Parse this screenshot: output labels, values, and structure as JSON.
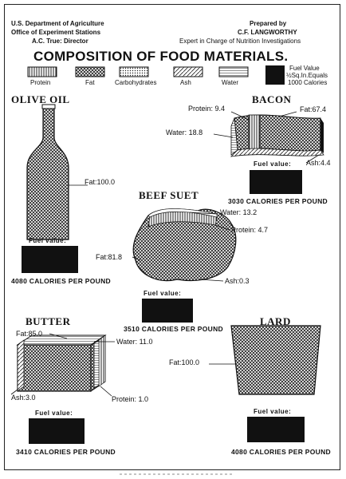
{
  "header": {
    "left_line1": "U.S. Department of Agriculture",
    "left_line2": "Office of Experiment Stations",
    "left_line3": "A.C. True: Director",
    "right_line1": "Prepared by",
    "right_line2": "C.F. LANGWORTHY",
    "right_line3": "Expert in Charge of Nutrition Investigations",
    "title": "COMPOSITION OF FOOD MATERIALS."
  },
  "legend": {
    "protein": "Protein",
    "fat": "Fat",
    "carbohydrates": "Carbohydrates",
    "ash": "Ash",
    "water": "Water",
    "fuel_line1": "Fuel Value",
    "fuel_line2": "½Sq.In.Equals",
    "fuel_line3": "1000 Calories"
  },
  "foods": {
    "olive_oil": {
      "name": "OLIVE OIL",
      "fat": "Fat:100.0",
      "fuel_label": "Fuel value:",
      "calories": "4080 CALORIES PER POUND"
    },
    "bacon": {
      "name": "BACON",
      "protein": "Protein: 9.4",
      "fat": "Fat:67.4",
      "water": "Water: 18.8",
      "ash": "Ash:4.4",
      "fuel_label": "Fuel value:",
      "calories": "3030 CALORIES PER POUND"
    },
    "beef_suet": {
      "name": "BEEF SUET",
      "water": "Water: 13.2",
      "protein": "Protein: 4.7",
      "fat": "Fat:81.8",
      "ash": "Ash:0.3",
      "fuel_label": "Fuel value:",
      "calories": "3510 CALORIES PER POUND"
    },
    "butter": {
      "name": "BUTTER",
      "fat": "Fat:85.0",
      "water": "Water: 11.0",
      "ash": "Ash:3.0",
      "protein": "Protein: 1.0",
      "fuel_label": "Fuel value:",
      "calories": "3410 CALORIES PER POUND"
    },
    "lard": {
      "name": "LARD",
      "fat": "Fat:100.0",
      "fuel_label": "Fuel value:",
      "calories": "4080 CALORIES PER POUND"
    }
  },
  "colors": {
    "ink": "#111111",
    "paper": "#ffffff"
  }
}
